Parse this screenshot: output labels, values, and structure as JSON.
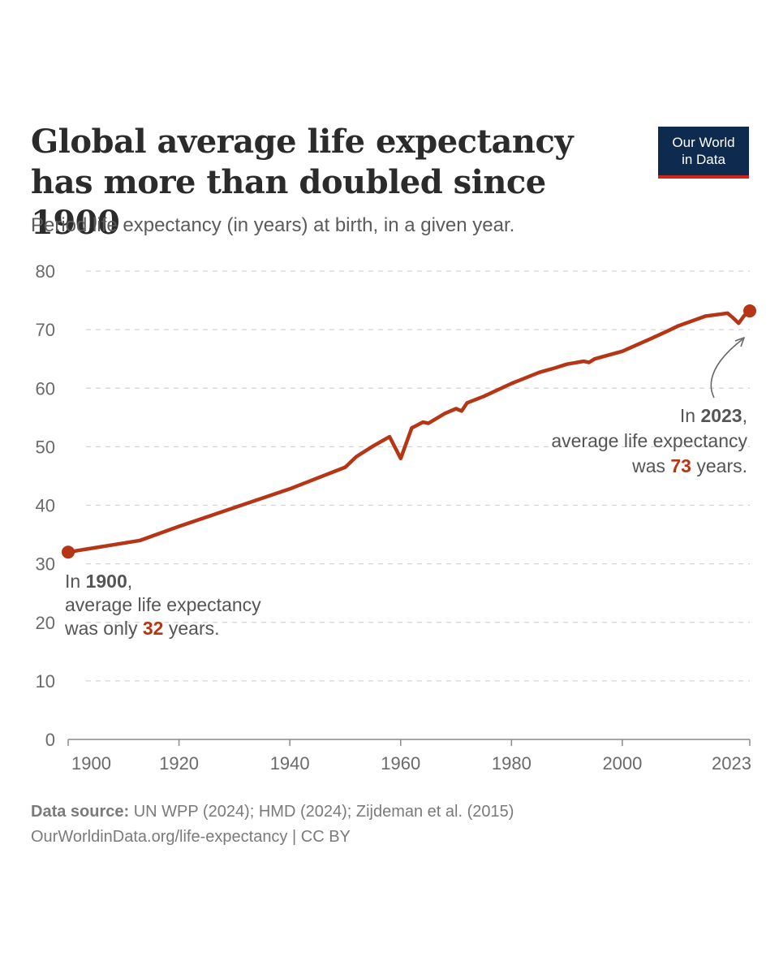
{
  "logo": {
    "line1": "Our World",
    "line2": "in Data"
  },
  "chart_data": {
    "type": "line",
    "title": "Global average life expectancy has more than doubled since 1900",
    "subtitle": "Period life expectancy (in years) at birth, in a given year.",
    "xlabel": "",
    "ylabel": "",
    "xlim": [
      1900,
      2023
    ],
    "ylim": [
      0,
      80
    ],
    "x_ticks": [
      1900,
      1920,
      1940,
      1960,
      1980,
      2000,
      2023
    ],
    "y_ticks": [
      0,
      10,
      20,
      30,
      40,
      50,
      60,
      70,
      80
    ],
    "grid": true,
    "color": "#b53514",
    "series": [
      {
        "name": "Life expectancy",
        "x": [
          1900,
          1913,
          1920,
          1930,
          1940,
          1950,
          1952,
          1955,
          1958,
          1960,
          1962,
          1964,
          1965,
          1968,
          1970,
          1971,
          1972,
          1975,
          1980,
          1985,
          1988,
          1990,
          1993,
          1994,
          1995,
          2000,
          2005,
          2008,
          2010,
          2015,
          2019,
          2020,
          2021,
          2022,
          2023
        ],
        "y": [
          32.0,
          34.0,
          36.4,
          39.6,
          42.8,
          46.5,
          48.3,
          50.1,
          51.7,
          48.0,
          53.2,
          54.2,
          54.0,
          55.7,
          56.5,
          56.1,
          57.5,
          58.6,
          60.8,
          62.7,
          63.5,
          64.1,
          64.6,
          64.4,
          65.0,
          66.3,
          68.4,
          69.7,
          70.6,
          72.3,
          72.8,
          72.0,
          71.1,
          72.4,
          73.2
        ]
      }
    ],
    "annotations": [
      {
        "prefix": "In ",
        "year": "1900",
        "suffix": ",",
        "line2": "average life expectancy",
        "line3_pre": "was only ",
        "value": "32",
        "line3_post": " years.",
        "point": [
          1900,
          32.0
        ]
      },
      {
        "prefix": "In ",
        "year": "2023",
        "suffix": ",",
        "line2": "average life expectancy",
        "line3_pre": "was ",
        "value": "73",
        "line3_post": " years.",
        "point": [
          2023,
          73.2
        ]
      }
    ]
  },
  "footer": {
    "source_label": "Data source:",
    "source_text": " UN WPP (2024); HMD (2024); Zijdeman et al. (2015)",
    "url_text": "OurWorldinData.org/life-expectancy | CC BY"
  }
}
